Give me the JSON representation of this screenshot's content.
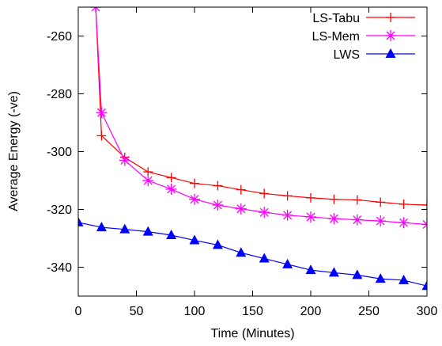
{
  "chart_data": {
    "type": "line",
    "title": "",
    "xlabel": "Time (Minutes)",
    "ylabel": "Average Energy (-ve)",
    "xlim": [
      0,
      300
    ],
    "ylim": [
      -350,
      -250
    ],
    "xticks": [
      0,
      50,
      100,
      150,
      200,
      250,
      300
    ],
    "yticks": [
      -340,
      -320,
      -300,
      -280,
      -260
    ],
    "grid": false,
    "legend_position": "top-right",
    "x": [
      0,
      20,
      40,
      60,
      80,
      100,
      120,
      140,
      160,
      180,
      200,
      220,
      240,
      260,
      280,
      300
    ],
    "series": [
      {
        "name": "LS-Tabu",
        "color": "#ff0000",
        "marker": "plus",
        "x": [
          15,
          20,
          40,
          60,
          80,
          100,
          120,
          140,
          160,
          180,
          200,
          220,
          240,
          260,
          280,
          300
        ],
        "values": [
          -250,
          -294.5,
          -302,
          -307,
          -309,
          -311,
          -311.8,
          -313.2,
          -314.5,
          -315.3,
          -316,
          -316.5,
          -316.7,
          -317.5,
          -318.2,
          -318.5
        ]
      },
      {
        "name": "LS-Mem",
        "color": "#ff00ff",
        "marker": "asterisk",
        "x": [
          15,
          20,
          40,
          60,
          80,
          100,
          120,
          140,
          160,
          180,
          200,
          220,
          240,
          260,
          280,
          300
        ],
        "values": [
          -250,
          -286.5,
          -303,
          -310,
          -313,
          -316.5,
          -318.5,
          -319.8,
          -321,
          -322,
          -322.6,
          -323.2,
          -323.6,
          -324,
          -324.6,
          -325.2
        ]
      },
      {
        "name": "LWS",
        "color": "#0000ff",
        "marker": "triangle",
        "x": [
          0,
          20,
          40,
          60,
          80,
          100,
          120,
          140,
          160,
          180,
          200,
          220,
          240,
          260,
          280,
          300
        ],
        "values": [
          -324.5,
          -326.2,
          -326.9,
          -327.7,
          -328.9,
          -330.7,
          -332.3,
          -335,
          -337,
          -339,
          -341,
          -341.9,
          -342.7,
          -344,
          -344.5,
          -346.5
        ]
      }
    ]
  }
}
